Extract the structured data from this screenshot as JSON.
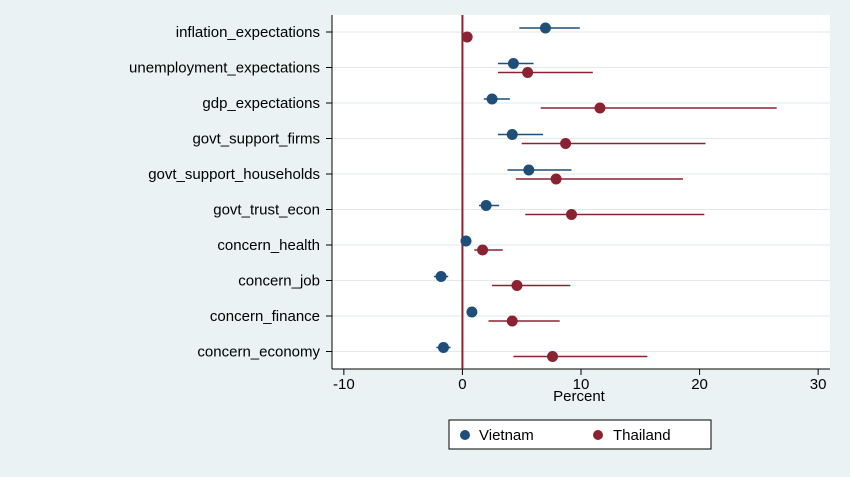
{
  "chart_data": {
    "type": "scatter",
    "subtype": "coefficient-plot",
    "title": "",
    "xlabel": "Percent",
    "ylabel": "",
    "xlim": [
      -11,
      31
    ],
    "x_ticks": [
      -10,
      0,
      10,
      20,
      30
    ],
    "x_tick_labels": [
      "-10",
      "0",
      "10",
      "20",
      "30"
    ],
    "reference_line_x": 0,
    "grid": "horizontal",
    "legend_position": "bottom",
    "categories": [
      "inflation_expectations",
      "unemployment_expectations",
      "gdp_expectations",
      "govt_support_firms",
      "govt_support_households",
      "govt_trust_econ",
      "concern_health",
      "concern_job",
      "concern_finance",
      "concern_economy"
    ],
    "series": [
      {
        "name": "Vietnam",
        "color": "#1f4e79",
        "estimates": [
          7.0,
          4.3,
          2.5,
          4.2,
          5.6,
          2.0,
          0.3,
          -1.8,
          0.8,
          -1.6
        ],
        "ci_low": [
          4.8,
          3.0,
          1.8,
          3.0,
          3.8,
          1.4,
          0.1,
          -2.4,
          0.6,
          -2.2
        ],
        "ci_high": [
          9.9,
          6.0,
          4.0,
          6.8,
          9.2,
          3.1,
          0.6,
          -1.2,
          1.0,
          -1.0
        ]
      },
      {
        "name": "Thailand",
        "color": "#8b2232",
        "estimates": [
          0.4,
          5.5,
          11.6,
          8.7,
          7.9,
          9.2,
          1.7,
          4.6,
          4.2,
          7.6
        ],
        "ci_low": [
          0.2,
          3.0,
          6.6,
          5.0,
          4.5,
          5.3,
          1.0,
          2.5,
          2.2,
          4.3
        ],
        "ci_high": [
          0.6,
          11.0,
          26.5,
          20.5,
          18.6,
          20.4,
          3.4,
          9.1,
          8.2,
          15.6
        ]
      }
    ]
  }
}
